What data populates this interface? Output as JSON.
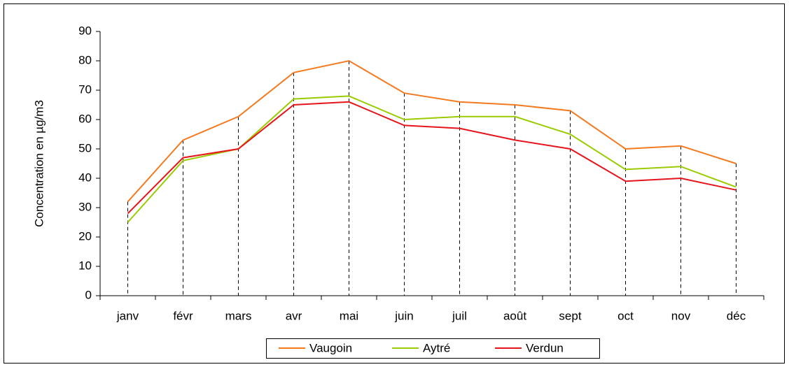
{
  "chart_data": {
    "type": "line",
    "y_label": "Concentration en µg/m3",
    "categories": [
      "janv",
      "févr",
      "mars",
      "avr",
      "mai",
      "juin",
      "juil",
      "août",
      "sept",
      "oct",
      "nov",
      "déc"
    ],
    "series": [
      {
        "name": "Vaugoin",
        "color": "#f47a20",
        "values": [
          32,
          53,
          61,
          76,
          80,
          69,
          66,
          65,
          63,
          50,
          51,
          45
        ]
      },
      {
        "name": "Aytré",
        "color": "#99cc00",
        "values": [
          25,
          46,
          50,
          67,
          68,
          60,
          61,
          61,
          55,
          43,
          44,
          37
        ]
      },
      {
        "name": "Verdun",
        "color": "#e8141b",
        "values": [
          28,
          47,
          50,
          65,
          66,
          58,
          57,
          53,
          50,
          39,
          40,
          36
        ]
      }
    ],
    "ylim": [
      0,
      90
    ],
    "yticks": [
      0,
      10,
      20,
      30,
      40,
      50,
      60,
      70,
      80,
      90
    ],
    "drop_lines": true,
    "legend": "bottom"
  }
}
